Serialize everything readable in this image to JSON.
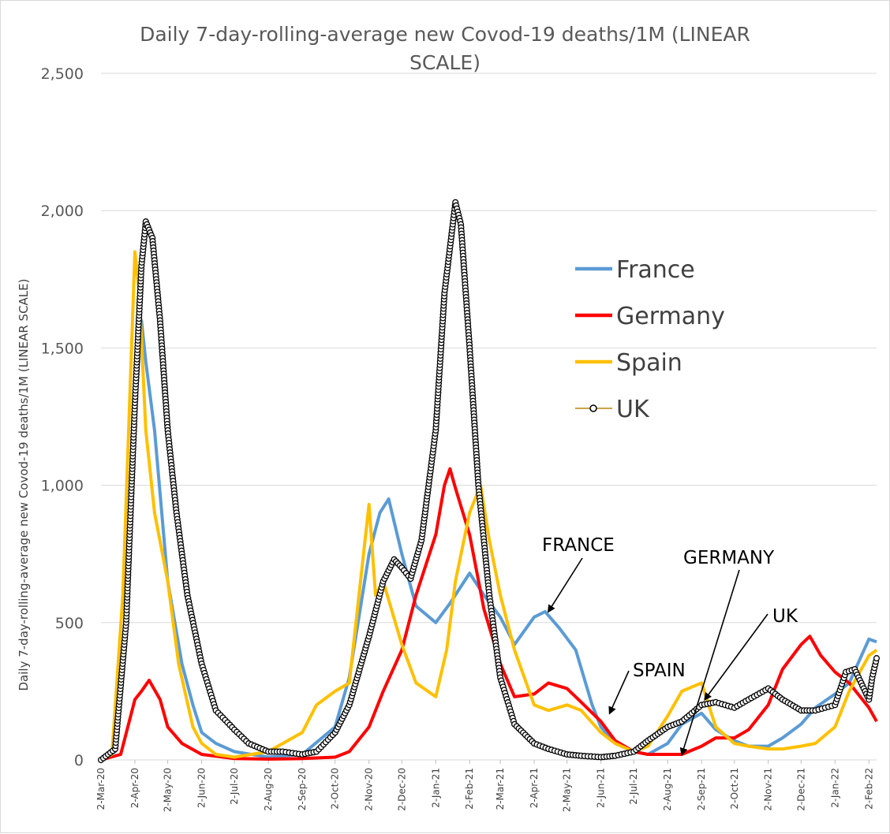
{
  "chart_data": {
    "type": "line",
    "title": "Daily 7-day-rolling-average new Covod-19 deaths/1M (LINEAR SCALE)",
    "title_lines": [
      "Daily 7-day-rolling-average new Covod-19 deaths/1M (LINEAR",
      "SCALE)"
    ],
    "ylabel": "Daily 7-day-rolling-average new Covod-19 deaths/1M (LINEAR SCALE)",
    "xlabel": "",
    "x_range": [
      "2-Mar-20",
      "9-Feb-22"
    ],
    "ylim": [
      0,
      2500
    ],
    "yticks": [
      0,
      500,
      1000,
      1500,
      2000,
      2500
    ],
    "ytick_labels": [
      "0",
      "500",
      "1,000",
      "1,500",
      "2,000",
      "2,500"
    ],
    "xtick_labels": [
      "2-Mar-20",
      "2-Apr-20",
      "2-May-20",
      "2-Jun-20",
      "2-Jul-20",
      "2-Aug-20",
      "2-Sep-20",
      "2-Oct-20",
      "2-Nov-20",
      "2-Dec-20",
      "2-Jan-21",
      "2-Feb-21",
      "2-Mar-21",
      "2-Apr-21",
      "2-May-21",
      "2-Jun-21",
      "2-Jul-21",
      "2-Aug-21",
      "2-Sep-21",
      "2-Oct-21",
      "2-Nov-21",
      "2-Dec-21",
      "2-Jan-22",
      "2-Feb-22"
    ],
    "grid": true,
    "legend_position": "right",
    "series": [
      {
        "name": "France",
        "color": "#5b9bd5",
        "marker": "none",
        "points": [
          [
            "2-Mar-20",
            0
          ],
          [
            "15-Mar-20",
            30
          ],
          [
            "25-Mar-20",
            500
          ],
          [
            "2-Apr-20",
            1250
          ],
          [
            "8-Apr-20",
            1600
          ],
          [
            "12-Apr-20",
            1450
          ],
          [
            "20-Apr-20",
            1200
          ],
          [
            "2-May-20",
            650
          ],
          [
            "15-May-20",
            350
          ],
          [
            "25-May-20",
            200
          ],
          [
            "2-Jun-20",
            100
          ],
          [
            "15-Jun-20",
            60
          ],
          [
            "2-Jul-20",
            30
          ],
          [
            "2-Aug-20",
            10
          ],
          [
            "2-Sep-20",
            20
          ],
          [
            "2-Oct-20",
            120
          ],
          [
            "15-Oct-20",
            300
          ],
          [
            "2-Nov-20",
            750
          ],
          [
            "12-Nov-20",
            900
          ],
          [
            "20-Nov-20",
            950
          ],
          [
            "2-Dec-20",
            750
          ],
          [
            "15-Dec-20",
            560
          ],
          [
            "2-Jan-21",
            500
          ],
          [
            "15-Jan-21",
            570
          ],
          [
            "2-Feb-21",
            680
          ],
          [
            "15-Feb-21",
            600
          ],
          [
            "2-Mar-21",
            520
          ],
          [
            "15-Mar-21",
            420
          ],
          [
            "2-Apr-21",
            520
          ],
          [
            "12-Apr-21",
            540
          ],
          [
            "25-Apr-21",
            480
          ],
          [
            "10-May-21",
            400
          ],
          [
            "25-May-21",
            200
          ],
          [
            "2-Jun-21",
            120
          ],
          [
            "15-Jun-21",
            60
          ],
          [
            "2-Jul-21",
            30
          ],
          [
            "15-Jul-21",
            20
          ],
          [
            "2-Aug-21",
            60
          ],
          [
            "15-Aug-21",
            130
          ],
          [
            "2-Sep-21",
            170
          ],
          [
            "15-Sep-21",
            110
          ],
          [
            "2-Oct-21",
            70
          ],
          [
            "15-Oct-21",
            50
          ],
          [
            "2-Nov-21",
            50
          ],
          [
            "15-Nov-21",
            80
          ],
          [
            "2-Dec-21",
            130
          ],
          [
            "15-Dec-21",
            190
          ],
          [
            "2-Jan-22",
            240
          ],
          [
            "15-Jan-22",
            280
          ],
          [
            "2-Feb-22",
            440
          ],
          [
            "9-Feb-22",
            430
          ]
        ]
      },
      {
        "name": "Germany",
        "color": "#ff0000",
        "marker": "none",
        "points": [
          [
            "2-Mar-20",
            0
          ],
          [
            "20-Mar-20",
            20
          ],
          [
            "2-Apr-20",
            220
          ],
          [
            "8-Apr-20",
            250
          ],
          [
            "15-Apr-20",
            290
          ],
          [
            "25-Apr-20",
            220
          ],
          [
            "2-May-20",
            120
          ],
          [
            "15-May-20",
            60
          ],
          [
            "2-Jun-20",
            20
          ],
          [
            "2-Jul-20",
            5
          ],
          [
            "2-Aug-20",
            3
          ],
          [
            "2-Sep-20",
            5
          ],
          [
            "2-Oct-20",
            10
          ],
          [
            "15-Oct-20",
            30
          ],
          [
            "2-Nov-20",
            120
          ],
          [
            "15-Nov-20",
            250
          ],
          [
            "2-Dec-20",
            400
          ],
          [
            "15-Dec-20",
            600
          ],
          [
            "2-Jan-21",
            820
          ],
          [
            "10-Jan-21",
            1000
          ],
          [
            "15-Jan-21",
            1060
          ],
          [
            "20-Jan-21",
            990
          ],
          [
            "2-Feb-21",
            820
          ],
          [
            "15-Feb-21",
            550
          ],
          [
            "2-Mar-21",
            350
          ],
          [
            "15-Mar-21",
            230
          ],
          [
            "2-Apr-21",
            240
          ],
          [
            "15-Apr-21",
            280
          ],
          [
            "2-May-21",
            260
          ],
          [
            "15-May-21",
            210
          ],
          [
            "2-Jun-21",
            140
          ],
          [
            "15-Jun-21",
            70
          ],
          [
            "2-Jul-21",
            30
          ],
          [
            "15-Jul-21",
            20
          ],
          [
            "2-Aug-21",
            20
          ],
          [
            "15-Aug-21",
            20
          ],
          [
            "2-Sep-21",
            50
          ],
          [
            "15-Sep-21",
            80
          ],
          [
            "2-Oct-21",
            80
          ],
          [
            "15-Oct-21",
            110
          ],
          [
            "2-Nov-21",
            200
          ],
          [
            "15-Nov-21",
            330
          ],
          [
            "2-Dec-21",
            420
          ],
          [
            "10-Dec-21",
            450
          ],
          [
            "20-Dec-21",
            380
          ],
          [
            "2-Jan-22",
            320
          ],
          [
            "15-Jan-22",
            280
          ],
          [
            "2-Feb-22",
            190
          ],
          [
            "9-Feb-22",
            140
          ]
        ]
      },
      {
        "name": "Spain",
        "color": "#ffc000",
        "marker": "none",
        "points": [
          [
            "2-Mar-20",
            0
          ],
          [
            "12-Mar-20",
            20
          ],
          [
            "22-Mar-20",
            600
          ],
          [
            "2-Apr-20",
            1850
          ],
          [
            "6-Apr-20",
            1700
          ],
          [
            "12-Apr-20",
            1200
          ],
          [
            "20-Apr-20",
            900
          ],
          [
            "2-May-20",
            650
          ],
          [
            "12-May-20",
            350
          ],
          [
            "25-May-20",
            120
          ],
          [
            "2-Jun-20",
            60
          ],
          [
            "15-Jun-20",
            20
          ],
          [
            "2-Jul-20",
            10
          ],
          [
            "2-Aug-20",
            30
          ],
          [
            "2-Sep-20",
            100
          ],
          [
            "15-Sep-20",
            200
          ],
          [
            "2-Oct-20",
            250
          ],
          [
            "15-Oct-20",
            280
          ],
          [
            "2-Nov-20",
            930
          ],
          [
            "8-Nov-20",
            600
          ],
          [
            "15-Nov-20",
            650
          ],
          [
            "2-Dec-20",
            420
          ],
          [
            "15-Dec-20",
            280
          ],
          [
            "2-Jan-21",
            230
          ],
          [
            "12-Jan-21",
            400
          ],
          [
            "20-Jan-21",
            650
          ],
          [
            "2-Feb-21",
            900
          ],
          [
            "12-Feb-21",
            1000
          ],
          [
            "20-Feb-21",
            800
          ],
          [
            "2-Mar-21",
            600
          ],
          [
            "15-Mar-21",
            400
          ],
          [
            "2-Apr-21",
            200
          ],
          [
            "15-Apr-21",
            180
          ],
          [
            "2-May-21",
            200
          ],
          [
            "15-May-21",
            180
          ],
          [
            "2-Jun-21",
            100
          ],
          [
            "15-Jun-21",
            60
          ],
          [
            "2-Jul-21",
            30
          ],
          [
            "15-Jul-21",
            50
          ],
          [
            "2-Aug-21",
            160
          ],
          [
            "15-Aug-21",
            250
          ],
          [
            "2-Sep-21",
            280
          ],
          [
            "15-Sep-21",
            120
          ],
          [
            "2-Oct-21",
            60
          ],
          [
            "15-Oct-21",
            50
          ],
          [
            "2-Nov-21",
            40
          ],
          [
            "15-Nov-21",
            40
          ],
          [
            "2-Dec-21",
            50
          ],
          [
            "15-Dec-21",
            60
          ],
          [
            "2-Jan-22",
            120
          ],
          [
            "15-Jan-22",
            250
          ],
          [
            "2-Feb-22",
            380
          ],
          [
            "9-Feb-22",
            400
          ]
        ]
      },
      {
        "name": "UK",
        "color": "#b8860b",
        "marker": "circle",
        "points": [
          [
            "2-Mar-20",
            0
          ],
          [
            "15-Mar-20",
            40
          ],
          [
            "25-Mar-20",
            500
          ],
          [
            "2-Apr-20",
            1300
          ],
          [
            "8-Apr-20",
            1800
          ],
          [
            "12-Apr-20",
            1960
          ],
          [
            "18-Apr-20",
            1900
          ],
          [
            "25-Apr-20",
            1600
          ],
          [
            "2-May-20",
            1200
          ],
          [
            "10-May-20",
            900
          ],
          [
            "20-May-20",
            600
          ],
          [
            "2-Jun-20",
            350
          ],
          [
            "15-Jun-20",
            180
          ],
          [
            "2-Jul-20",
            110
          ],
          [
            "15-Jul-20",
            60
          ],
          [
            "2-Aug-20",
            30
          ],
          [
            "15-Aug-20",
            30
          ],
          [
            "2-Sep-20",
            20
          ],
          [
            "15-Sep-20",
            30
          ],
          [
            "2-Oct-20",
            100
          ],
          [
            "15-Oct-20",
            200
          ],
          [
            "2-Nov-20",
            450
          ],
          [
            "15-Nov-20",
            650
          ],
          [
            "25-Nov-20",
            730
          ],
          [
            "2-Dec-20",
            700
          ],
          [
            "10-Dec-20",
            660
          ],
          [
            "20-Dec-20",
            800
          ],
          [
            "2-Jan-21",
            1200
          ],
          [
            "10-Jan-21",
            1700
          ],
          [
            "20-Jan-21",
            2030
          ],
          [
            "25-Jan-21",
            1950
          ],
          [
            "2-Feb-21",
            1500
          ],
          [
            "10-Feb-21",
            1000
          ],
          [
            "20-Feb-21",
            600
          ],
          [
            "2-Mar-21",
            300
          ],
          [
            "15-Mar-21",
            130
          ],
          [
            "2-Apr-21",
            60
          ],
          [
            "15-Apr-21",
            40
          ],
          [
            "2-May-21",
            20
          ],
          [
            "15-May-21",
            15
          ],
          [
            "2-Jun-21",
            10
          ],
          [
            "15-Jun-21",
            15
          ],
          [
            "2-Jul-21",
            30
          ],
          [
            "15-Jul-21",
            70
          ],
          [
            "2-Aug-21",
            120
          ],
          [
            "15-Aug-21",
            140
          ],
          [
            "2-Sep-21",
            200
          ],
          [
            "15-Sep-21",
            210
          ],
          [
            "2-Oct-21",
            190
          ],
          [
            "15-Oct-21",
            220
          ],
          [
            "2-Nov-21",
            260
          ],
          [
            "15-Nov-21",
            220
          ],
          [
            "2-Dec-21",
            180
          ],
          [
            "15-Dec-21",
            180
          ],
          [
            "2-Jan-22",
            200
          ],
          [
            "12-Jan-22",
            320
          ],
          [
            "20-Jan-22",
            330
          ],
          [
            "2-Feb-22",
            220
          ],
          [
            "5-Feb-22",
            300
          ],
          [
            "9-Feb-22",
            370
          ]
        ]
      }
    ],
    "annotations": [
      {
        "label": "FRANCE",
        "points_to": [
          "15-Apr-21",
          540
        ]
      },
      {
        "label": "SPAIN",
        "points_to": [
          "10-Jun-21",
          170
        ]
      },
      {
        "label": "GERMANY",
        "points_to": [
          "15-Aug-21",
          20
        ]
      },
      {
        "label": "UK",
        "points_to": [
          "5-Sep-21",
          220
        ]
      }
    ]
  }
}
